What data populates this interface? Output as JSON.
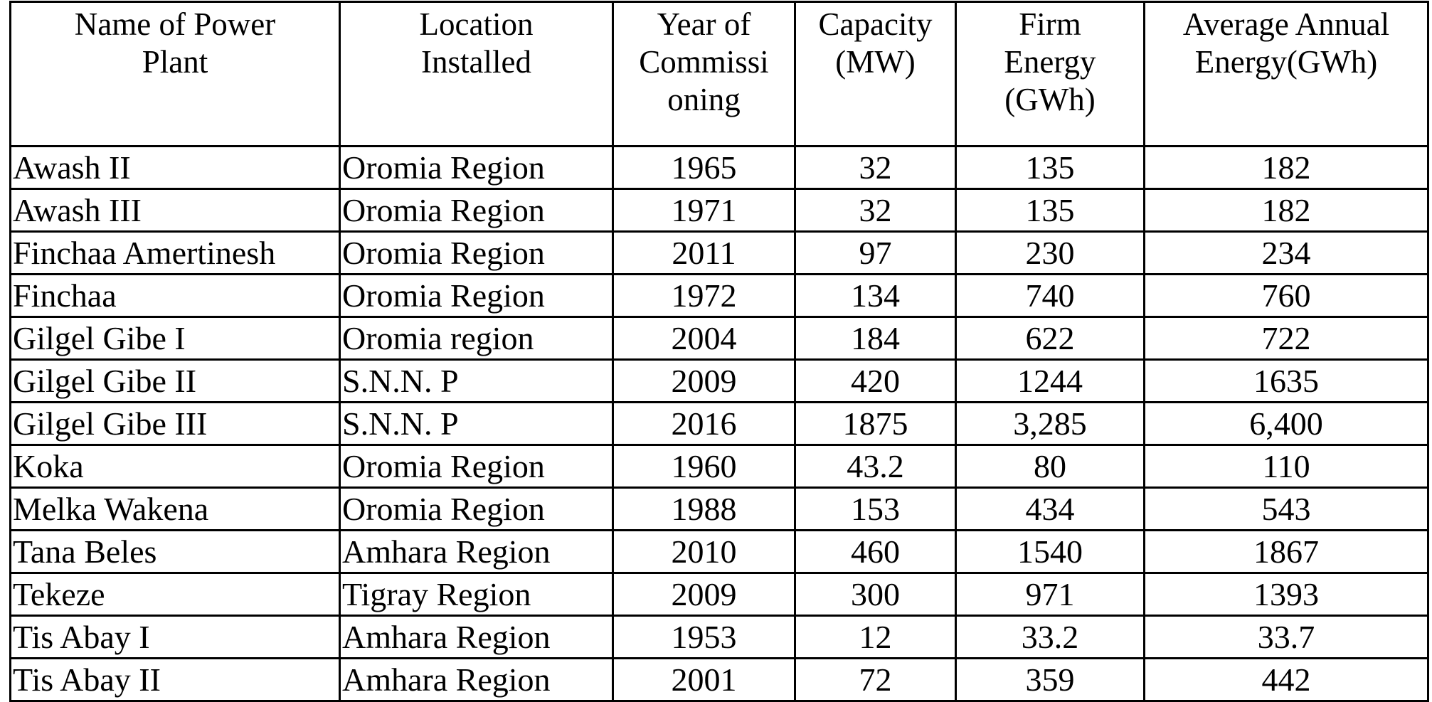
{
  "table": {
    "headers": [
      "Name of Power\nPlant",
      "Location\nInstalled",
      "Year of\nCommissi\noning",
      "Capacity\n(MW)",
      "Firm\nEnergy\n(GWh)",
      "Average Annual\nEnergy(GWh)"
    ],
    "rows": [
      [
        "Awash II",
        "Oromia Region",
        "1965",
        "32",
        "135",
        "182"
      ],
      [
        "Awash III",
        "Oromia Region",
        "1971",
        "32",
        "135",
        "182"
      ],
      [
        "Finchaa Amertinesh",
        "Oromia Region",
        "2011",
        "97",
        "230",
        "234"
      ],
      [
        "Finchaa",
        "Oromia Region",
        "1972",
        "134",
        "740",
        "760"
      ],
      [
        "Gilgel Gibe I",
        "Oromia region",
        "2004",
        "184",
        "622",
        "722"
      ],
      [
        "Gilgel Gibe II",
        "S.N.N. P",
        "2009",
        "420",
        "1244",
        "1635"
      ],
      [
        "Gilgel Gibe III",
        "S.N.N. P",
        "2016",
        "1875",
        "3,285",
        "6,400"
      ],
      [
        "Koka",
        "Oromia Region",
        "1960",
        "43.2",
        "80",
        "110"
      ],
      [
        "Melka Wakena",
        "Oromia Region",
        "1988",
        "153",
        "434",
        "543"
      ],
      [
        "Tana Beles",
        "Amhara Region",
        "2010",
        "460",
        "1540",
        "1867"
      ],
      [
        "Tekeze",
        "Tigray Region",
        "2009",
        "300",
        "971",
        "1393"
      ],
      [
        "Tis Abay I",
        "Amhara Region",
        "1953",
        "12",
        "33.2",
        "33.7"
      ],
      [
        "Tis Abay II",
        "Amhara Region",
        "2001",
        "72",
        "359",
        "442"
      ]
    ]
  },
  "colors": {
    "text": "#000000",
    "border": "#000000",
    "background": "#ffffff"
  }
}
